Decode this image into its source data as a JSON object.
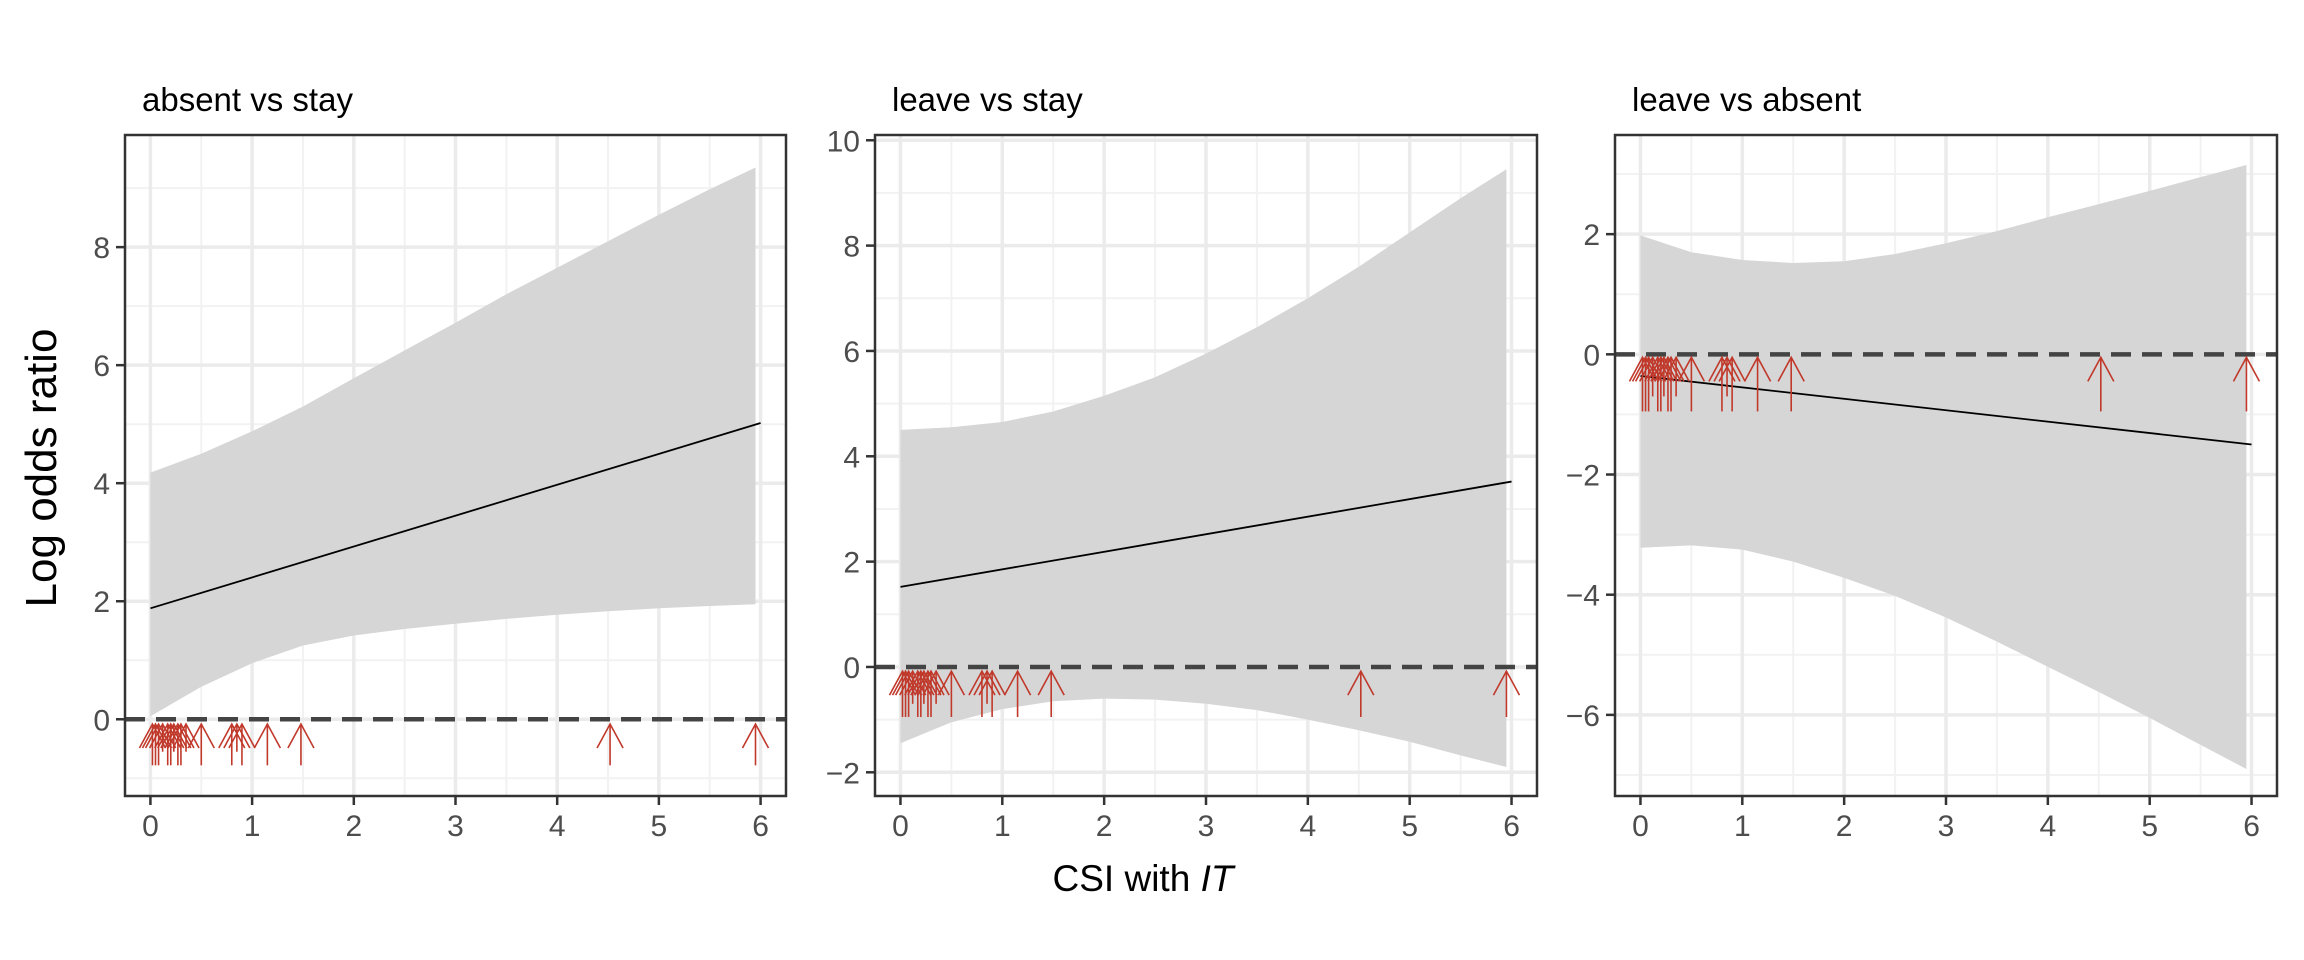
{
  "figure": {
    "xlabel_plain": "CSI with ",
    "xlabel_italic": "IT",
    "ylabel": "Log odds ratio"
  },
  "chart_data": [
    {
      "type": "line",
      "title": "absent vs stay",
      "xlim": [
        -0.25,
        6.25
      ],
      "ylim": [
        -1.3,
        9.9
      ],
      "xticks": [
        0,
        1,
        2,
        3,
        4,
        5,
        6
      ],
      "yticks": [
        0,
        2,
        4,
        6,
        8
      ],
      "grid": true,
      "reference_line": {
        "y": 0,
        "style": "dashed"
      },
      "fit": {
        "x": [
          0,
          6
        ],
        "y": [
          1.88,
          5.02
        ]
      },
      "ci_band": {
        "x": [
          0,
          0.5,
          1,
          1.5,
          2,
          2.5,
          3,
          3.5,
          4,
          4.5,
          5,
          5.5,
          5.95
        ],
        "lower": [
          0.05,
          0.55,
          0.95,
          1.25,
          1.42,
          1.53,
          1.62,
          1.7,
          1.77,
          1.83,
          1.88,
          1.92,
          1.95
        ],
        "upper": [
          4.18,
          4.5,
          4.88,
          5.3,
          5.78,
          6.25,
          6.72,
          7.2,
          7.65,
          8.1,
          8.55,
          8.98,
          9.35
        ]
      },
      "arrow_markers": {
        "x": [
          0.02,
          0.05,
          0.08,
          0.12,
          0.17,
          0.2,
          0.23,
          0.27,
          0.3,
          0.35,
          0.5,
          0.8,
          0.85,
          0.9,
          1.15,
          1.48,
          4.52,
          5.95
        ],
        "y_tip": [
          -0.08,
          -0.08,
          -0.08,
          -0.08,
          -0.08,
          -0.08,
          -0.08,
          -0.08,
          -0.08,
          -0.08,
          -0.08,
          -0.08,
          -0.08,
          -0.08,
          -0.08,
          -0.08,
          -0.08,
          -0.08
        ],
        "y_tail": [
          -0.78,
          -0.78,
          -0.78,
          -0.55,
          -0.78,
          -0.78,
          -0.55,
          -0.78,
          -0.78,
          -0.55,
          -0.78,
          -0.78,
          -0.55,
          -0.78,
          -0.78,
          -0.78,
          -0.78,
          -0.78
        ]
      }
    },
    {
      "type": "line",
      "title": "leave vs stay",
      "xlim": [
        -0.25,
        6.25
      ],
      "ylim": [
        -2.45,
        10.1
      ],
      "xticks": [
        0,
        1,
        2,
        3,
        4,
        5,
        6
      ],
      "yticks": [
        -2,
        0,
        2,
        4,
        6,
        8,
        10
      ],
      "grid": true,
      "reference_line": {
        "y": 0,
        "style": "dashed"
      },
      "fit": {
        "x": [
          0,
          6
        ],
        "y": [
          1.52,
          3.52
        ]
      },
      "ci_band": {
        "x": [
          0,
          0.5,
          1,
          1.5,
          2,
          2.5,
          3,
          3.5,
          4,
          4.5,
          5,
          5.5,
          5.95
        ],
        "lower": [
          -1.45,
          -1.05,
          -0.8,
          -0.65,
          -0.6,
          -0.62,
          -0.7,
          -0.82,
          -1.0,
          -1.2,
          -1.42,
          -1.68,
          -1.9
        ],
        "upper": [
          4.5,
          4.55,
          4.65,
          4.85,
          5.15,
          5.5,
          5.95,
          6.45,
          7.0,
          7.6,
          8.25,
          8.9,
          9.45
        ]
      },
      "arrow_markers": {
        "x": [
          0.02,
          0.05,
          0.08,
          0.12,
          0.17,
          0.2,
          0.23,
          0.27,
          0.3,
          0.35,
          0.5,
          0.8,
          0.85,
          0.9,
          1.15,
          1.48,
          4.52,
          5.95
        ],
        "y_tip": [
          -0.08,
          -0.08,
          -0.08,
          -0.08,
          -0.08,
          -0.08,
          -0.08,
          -0.08,
          -0.08,
          -0.08,
          -0.08,
          -0.08,
          -0.08,
          -0.08,
          -0.08,
          -0.08,
          -0.08,
          -0.08
        ],
        "y_tail": [
          -0.95,
          -0.95,
          -0.95,
          -0.7,
          -0.95,
          -0.95,
          -0.7,
          -0.95,
          -0.95,
          -0.7,
          -0.95,
          -0.95,
          -0.7,
          -0.95,
          -0.95,
          -0.95,
          -0.95,
          -0.95
        ]
      }
    },
    {
      "type": "line",
      "title": "leave vs absent",
      "xlim": [
        -0.25,
        6.25
      ],
      "ylim": [
        -7.35,
        3.65
      ],
      "xticks": [
        0,
        1,
        2,
        3,
        4,
        5,
        6
      ],
      "yticks": [
        -6,
        -4,
        -2,
        0,
        2
      ],
      "grid": true,
      "reference_line": {
        "y": 0,
        "style": "dashed"
      },
      "fit": {
        "x": [
          0,
          6
        ],
        "y": [
          -0.36,
          -1.5
        ]
      },
      "ci_band": {
        "x": [
          0,
          0.5,
          1,
          1.5,
          2,
          2.5,
          3,
          3.5,
          4,
          4.5,
          5,
          5.5,
          5.95
        ],
        "lower": [
          -3.22,
          -3.18,
          -3.25,
          -3.45,
          -3.72,
          -4.02,
          -4.38,
          -4.78,
          -5.2,
          -5.62,
          -6.05,
          -6.5,
          -6.9
        ],
        "upper": [
          1.98,
          1.7,
          1.57,
          1.52,
          1.55,
          1.67,
          1.85,
          2.05,
          2.28,
          2.5,
          2.72,
          2.95,
          3.15
        ]
      },
      "arrow_markers": {
        "x": [
          0.02,
          0.05,
          0.08,
          0.12,
          0.17,
          0.2,
          0.23,
          0.27,
          0.3,
          0.35,
          0.5,
          0.8,
          0.85,
          0.9,
          1.15,
          1.48,
          4.52,
          5.95
        ],
        "y_tip": [
          -0.05,
          -0.05,
          -0.05,
          -0.05,
          -0.05,
          -0.05,
          -0.05,
          -0.05,
          -0.05,
          -0.05,
          -0.05,
          -0.05,
          -0.05,
          -0.05,
          -0.05,
          -0.05,
          -0.05,
          -0.05
        ],
        "y_tail": [
          -0.95,
          -0.95,
          -0.95,
          -0.7,
          -0.95,
          -0.95,
          -0.7,
          -0.95,
          -0.95,
          -0.7,
          -0.95,
          -0.95,
          -0.7,
          -0.95,
          -0.95,
          -0.95,
          -0.95,
          -0.95
        ]
      }
    }
  ]
}
